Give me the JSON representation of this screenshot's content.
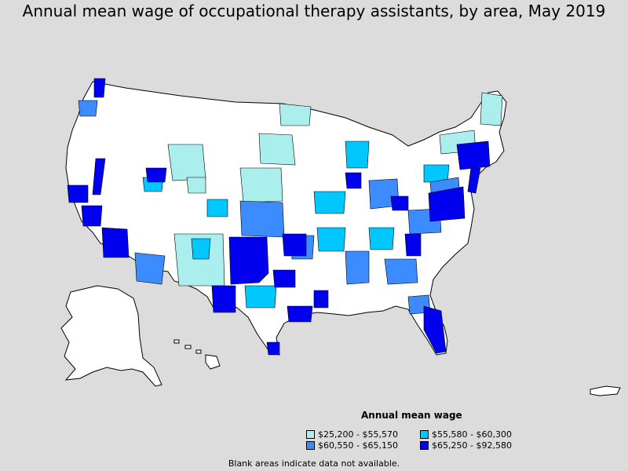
{
  "title": "Annual mean wage of occupational therapy assistants, by area, May 2019",
  "legend": {
    "title": "Annual mean wage",
    "items": [
      {
        "label": "$25,200 - $55,570",
        "color": "#aaeeee"
      },
      {
        "label": "$55,580 - $60,300",
        "color": "#00c8ff"
      },
      {
        "label": "$60,550 - $65,150",
        "color": "#3c8cff"
      },
      {
        "label": "$65,250 - $92,580",
        "color": "#0000ee"
      }
    ]
  },
  "footnote": "Blank areas indicate data not available.",
  "colors": {
    "background": "#dcdcdc",
    "no_data": "#ffffff",
    "border": "#000000"
  }
}
